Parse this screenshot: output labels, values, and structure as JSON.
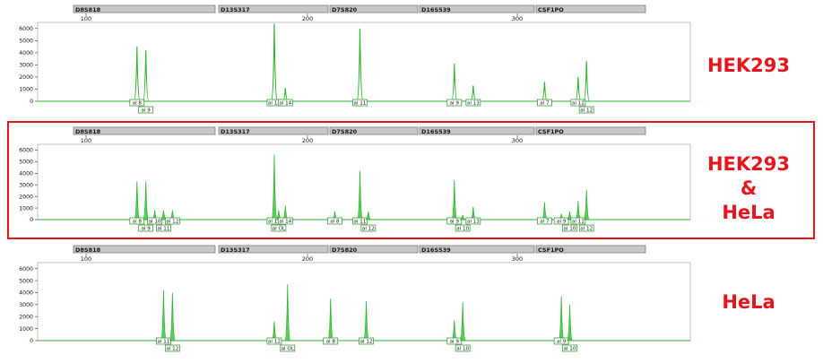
{
  "colors": {
    "trace": "#2db32d",
    "fill": "#39c639",
    "label_box": "#1f8f1f",
    "highlight": "#e8141b",
    "header_bar": "#c8c8c8"
  },
  "x_ticks": [
    "100",
    "200",
    "300"
  ],
  "y_ticks": [
    "6000",
    "5000",
    "4000",
    "3000",
    "2000",
    "1000",
    "0"
  ],
  "markers": [
    "D8S818",
    "D13S317",
    "D7S820",
    "D16S539",
    "CSF1PO"
  ],
  "side_labels": {
    "hek293": "HEK293",
    "mix": [
      "HEK293",
      "&",
      "HeLa"
    ],
    "hela": "HeLa"
  },
  "chart_data": [
    {
      "type": "line",
      "title": "HEK293",
      "xlim": [
        80,
        360
      ],
      "ylim": [
        0,
        6500
      ],
      "peaks": [
        {
          "x": 123,
          "y": 4500,
          "label": "al 8",
          "row": 1
        },
        {
          "x": 127,
          "y": 4200,
          "label": "al 9",
          "row": 2
        },
        {
          "x": 185,
          "y": 6400,
          "label": "al 12",
          "row": 1
        },
        {
          "x": 190,
          "y": 1100,
          "label": "al 14",
          "row": 1
        },
        {
          "x": 225,
          "y": 6000,
          "label": "al 11",
          "row": 1
        },
        {
          "x": 270,
          "y": 3100,
          "label": "al 9",
          "row": 1
        },
        {
          "x": 279,
          "y": 1300,
          "label": "al 13",
          "row": 1
        },
        {
          "x": 313,
          "y": 1600,
          "label": "al 7",
          "row": 1
        },
        {
          "x": 329,
          "y": 2000,
          "label": "al 11",
          "row": 1
        },
        {
          "x": 333,
          "y": 3300,
          "label": "al 12",
          "row": 2
        }
      ]
    },
    {
      "type": "line",
      "title": "HEK293 & HeLa",
      "xlim": [
        80,
        360
      ],
      "ylim": [
        0,
        6500
      ],
      "peaks": [
        {
          "x": 123,
          "y": 3300,
          "label": "al 8",
          "row": 1
        },
        {
          "x": 127,
          "y": 3300,
          "label": "al 9",
          "row": 2
        },
        {
          "x": 131,
          "y": 800,
          "label": "al 10",
          "row": 1
        },
        {
          "x": 135,
          "y": 800,
          "label": "al 11",
          "row": 2
        },
        {
          "x": 139,
          "y": 800,
          "label": "al 12",
          "row": 1
        },
        {
          "x": 185,
          "y": 5600,
          "label": "al 12",
          "row": 1
        },
        {
          "x": 187,
          "y": 800,
          "label": "al OL",
          "row": 2
        },
        {
          "x": 190,
          "y": 1200,
          "label": "al 14",
          "row": 1
        },
        {
          "x": 213,
          "y": 700,
          "label": "al 8",
          "row": 1
        },
        {
          "x": 225,
          "y": 4200,
          "label": "al 11",
          "row": 1
        },
        {
          "x": 229,
          "y": 700,
          "label": "al 12",
          "row": 2
        },
        {
          "x": 270,
          "y": 3400,
          "label": "al 9",
          "row": 1
        },
        {
          "x": 274,
          "y": 400,
          "label": "al 10",
          "row": 2
        },
        {
          "x": 279,
          "y": 1100,
          "label": "al 13",
          "row": 1
        },
        {
          "x": 313,
          "y": 1500,
          "label": "al 7",
          "row": 1
        },
        {
          "x": 321,
          "y": 500,
          "label": "al 9",
          "row": 1
        },
        {
          "x": 325,
          "y": 700,
          "label": "al 10",
          "row": 2
        },
        {
          "x": 329,
          "y": 1600,
          "label": "al 11",
          "row": 1
        },
        {
          "x": 333,
          "y": 2600,
          "label": "al 12",
          "row": 2
        }
      ]
    },
    {
      "type": "line",
      "title": "HeLa",
      "xlim": [
        80,
        360
      ],
      "ylim": [
        0,
        6500
      ],
      "peaks": [
        {
          "x": 135,
          "y": 4200,
          "label": "al 11",
          "row": 1
        },
        {
          "x": 139,
          "y": 4000,
          "label": "al 12",
          "row": 2
        },
        {
          "x": 185,
          "y": 1600,
          "label": "al 12",
          "row": 1
        },
        {
          "x": 191,
          "y": 4700,
          "label": "al OL",
          "row": 2
        },
        {
          "x": 211,
          "y": 3500,
          "label": "al 8",
          "row": 1
        },
        {
          "x": 228,
          "y": 3300,
          "label": "al 12",
          "row": 1
        },
        {
          "x": 270,
          "y": 1700,
          "label": "al 9",
          "row": 1
        },
        {
          "x": 274,
          "y": 3200,
          "label": "al 10",
          "row": 2
        },
        {
          "x": 321,
          "y": 3700,
          "label": "al 9",
          "row": 1
        },
        {
          "x": 325,
          "y": 3000,
          "label": "al 10",
          "row": 2
        }
      ]
    }
  ]
}
